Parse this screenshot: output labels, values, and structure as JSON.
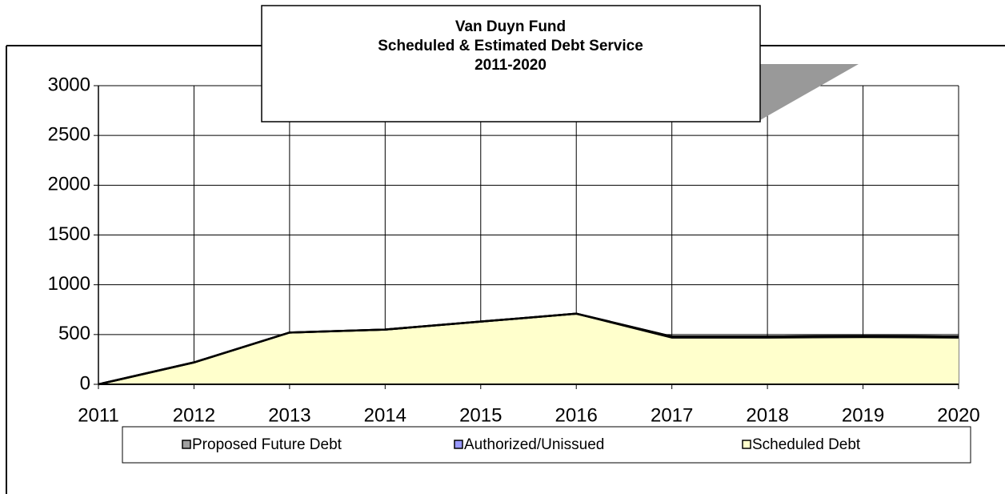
{
  "chart_data": {
    "type": "stacked_area",
    "title": "Van Duyn Fund",
    "subtitle": "Scheduled & Estimated Debt Service",
    "subtitle2": "2011-2020",
    "categories": [
      "2011",
      "2012",
      "2013",
      "2014",
      "2015",
      "2016",
      "2017",
      "2018",
      "2019",
      "2020"
    ],
    "series": [
      {
        "name": "Proposed Future Debt",
        "color": "#a0a0a0",
        "values": [
          0,
          0,
          0,
          0,
          0,
          0,
          0,
          0,
          0,
          0
        ]
      },
      {
        "name": "Authorized/Unissued",
        "color": "#9999ff",
        "values": [
          0,
          0,
          0,
          0,
          0,
          0,
          10,
          10,
          10,
          10
        ]
      },
      {
        "name": "Scheduled Debt",
        "color": "#ffffcc",
        "values": [
          0,
          220,
          520,
          550,
          630,
          710,
          470,
          470,
          475,
          470
        ]
      }
    ],
    "ylim": [
      0,
      3000
    ],
    "yticks": [
      0,
      500,
      1000,
      1500,
      2000,
      2500,
      3000
    ],
    "grid": true,
    "legend": "bottom"
  }
}
